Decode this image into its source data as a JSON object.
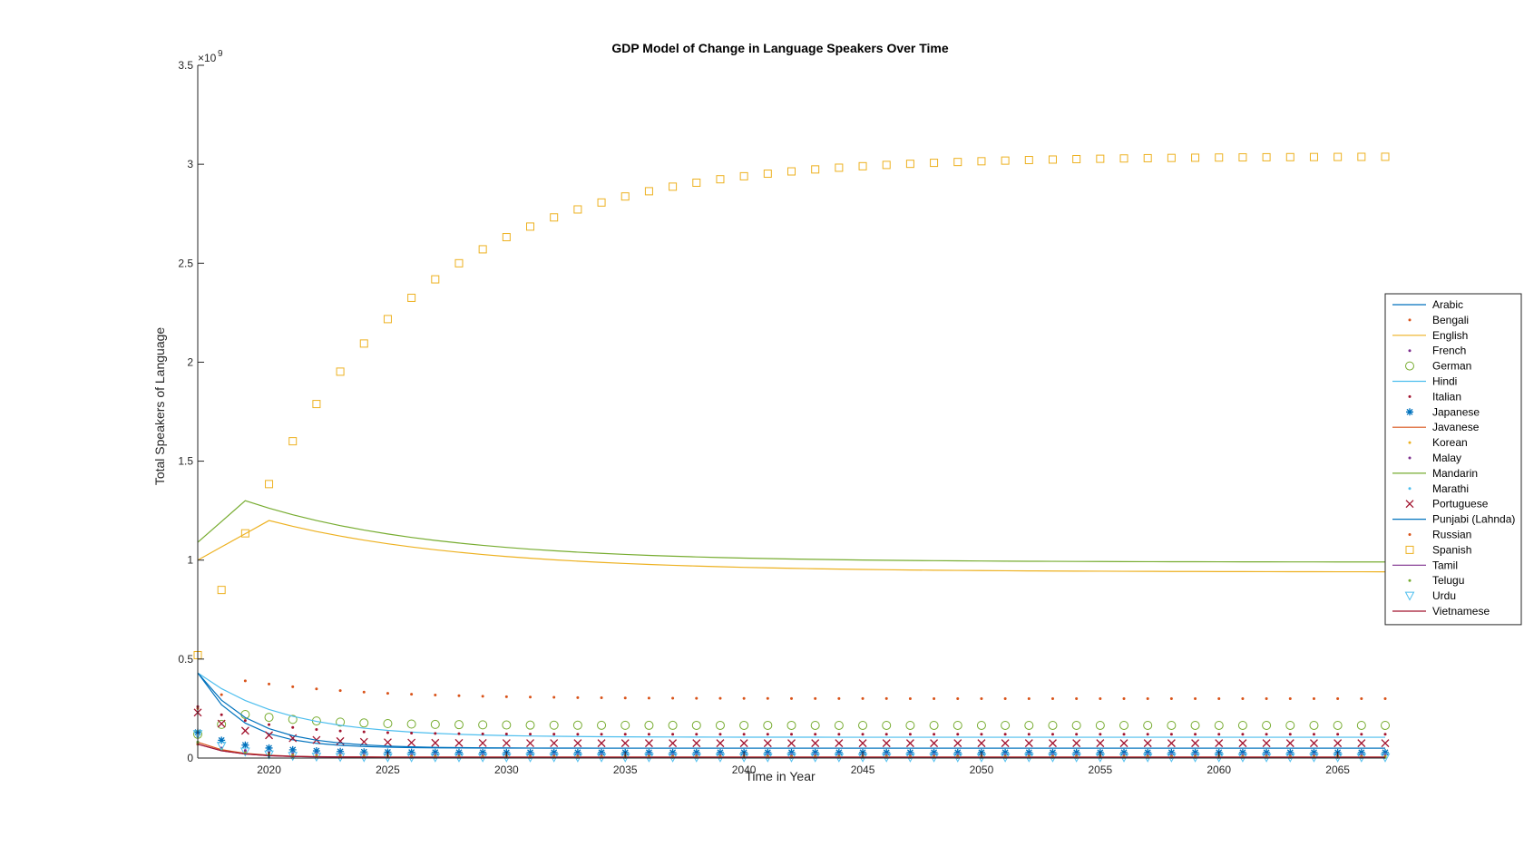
{
  "chart_data": {
    "type": "line",
    "title": "GDP Model of Change in Language Speakers Over Time",
    "xlabel": "Time in Year",
    "ylabel": "Total Speakers of Language",
    "y_exponent_label": "×10",
    "y_exponent_power": "9",
    "xlim": [
      2017,
      2067
    ],
    "ylim": [
      0,
      3.5
    ],
    "x_ticks": [
      2020,
      2025,
      2030,
      2035,
      2040,
      2045,
      2050,
      2055,
      2060,
      2065
    ],
    "y_ticks": [
      0,
      0.5,
      1,
      1.5,
      2,
      2.5,
      3,
      3.5
    ],
    "y_tick_labels": [
      "0",
      "0.5",
      "1",
      "1.5",
      "2",
      "2.5",
      "3",
      "3.5"
    ],
    "y_units": "billions (x10^9)",
    "grid": false,
    "legend_position": "right",
    "series": [
      {
        "name": "Arabic",
        "style": "line",
        "color": "#0072BD",
        "start": 0.43,
        "peak_year": 2017,
        "peak": 0.43,
        "end": 0.05,
        "decay": 0.55
      },
      {
        "name": "Bengali",
        "style": "dot",
        "color": "#D95319",
        "start": 0.25,
        "peak_year": 2019,
        "peak": 0.39,
        "end": 0.3,
        "decay": 0.2
      },
      {
        "name": "English",
        "style": "line",
        "color": "#EDB120",
        "start": 1.0,
        "peak_year": 2020,
        "peak": 1.2,
        "end": 0.94,
        "decay": 0.12
      },
      {
        "name": "French",
        "style": "dot",
        "color": "#7E2F8E",
        "start": 0.08,
        "peak_year": 2017,
        "peak": 0.08,
        "end": 0.01,
        "decay": 0.6
      },
      {
        "name": "German",
        "style": "circle",
        "color": "#77AC30",
        "start": 0.12,
        "peak_year": 2019,
        "peak": 0.22,
        "end": 0.165,
        "decay": 0.3
      },
      {
        "name": "Hindi",
        "style": "line",
        "color": "#4DBEEE",
        "start": 0.43,
        "peak_year": 2017,
        "peak": 0.43,
        "end": 0.105,
        "decay": 0.28
      },
      {
        "name": "Italian",
        "style": "dot",
        "color": "#A2142F",
        "start": 0.26,
        "peak_year": 2017,
        "peak": 0.26,
        "end": 0.12,
        "decay": 0.35
      },
      {
        "name": "Japanese",
        "style": "asterisk",
        "color": "#0072BD",
        "start": 0.13,
        "peak_year": 2017,
        "peak": 0.13,
        "end": 0.028,
        "decay": 0.5
      },
      {
        "name": "Javanese",
        "style": "line",
        "color": "#D95319",
        "start": 0.08,
        "peak_year": 2017,
        "peak": 0.08,
        "end": 0.005,
        "decay": 0.7
      },
      {
        "name": "Korean",
        "style": "dot",
        "color": "#EDB120",
        "start": 0.08,
        "peak_year": 2017,
        "peak": 0.08,
        "end": 0.01,
        "decay": 0.6
      },
      {
        "name": "Malay",
        "style": "dot",
        "color": "#7E2F8E",
        "start": 0.07,
        "peak_year": 2017,
        "peak": 0.07,
        "end": 0.02,
        "decay": 0.5
      },
      {
        "name": "Mandarin",
        "style": "line",
        "color": "#77AC30",
        "start": 1.09,
        "peak_year": 2019,
        "peak": 1.3,
        "end": 0.99,
        "decay": 0.13
      },
      {
        "name": "Marathi",
        "style": "dot",
        "color": "#4DBEEE",
        "start": 0.08,
        "peak_year": 2017,
        "peak": 0.08,
        "end": 0.003,
        "decay": 0.7
      },
      {
        "name": "Portuguese",
        "style": "x",
        "color": "#A2142F",
        "start": 0.23,
        "peak_year": 2017,
        "peak": 0.23,
        "end": 0.075,
        "decay": 0.45
      },
      {
        "name": "Punjabi (Lahnda)",
        "style": "line",
        "color": "#0072BD",
        "start": 0.43,
        "peak_year": 2017,
        "peak": 0.43,
        "end": 0.05,
        "decay": 0.45
      },
      {
        "name": "Russian",
        "style": "dot",
        "color": "#D95319",
        "start": 0.07,
        "peak_year": 2017,
        "peak": 0.07,
        "end": 0.005,
        "decay": 0.6
      },
      {
        "name": "Spanish",
        "style": "square",
        "color": "#EDB120",
        "start": 0.52,
        "peak_year": 2067,
        "peak": 3.04,
        "end": 3.04,
        "decay": 0.14
      },
      {
        "name": "Tamil",
        "style": "line",
        "color": "#7E2F8E",
        "start": 0.07,
        "peak_year": 2017,
        "peak": 0.07,
        "end": 0.004,
        "decay": 0.7
      },
      {
        "name": "Telugu",
        "style": "dot",
        "color": "#77AC30",
        "start": 0.08,
        "peak_year": 2017,
        "peak": 0.08,
        "end": 0.004,
        "decay": 0.65
      },
      {
        "name": "Urdu",
        "style": "triangle",
        "color": "#4DBEEE",
        "start": 0.12,
        "peak_year": 2017,
        "peak": 0.12,
        "end": 0.003,
        "decay": 0.7
      },
      {
        "name": "Vietnamese",
        "style": "line",
        "color": "#A2142F",
        "start": 0.07,
        "peak_year": 2017,
        "peak": 0.07,
        "end": 0.004,
        "decay": 0.7
      }
    ]
  }
}
